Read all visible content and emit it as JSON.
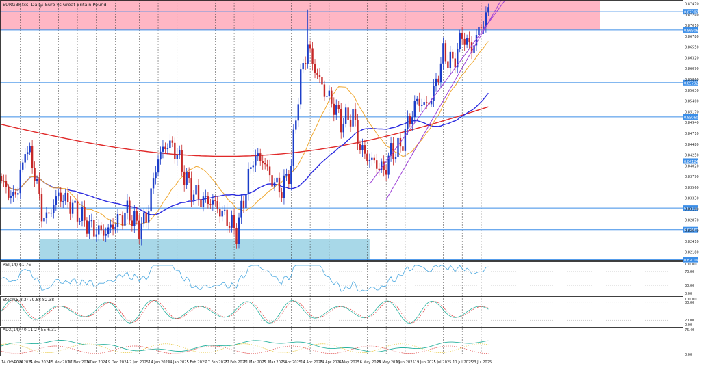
{
  "header": {
    "title": "EURGBP.fxs, Daily:  Euro vs Great Britain Pound"
  },
  "colors": {
    "bull": "#1a3cc8",
    "bear": "#c62828",
    "ma_fast": "#f0a830",
    "ma_mid": "#2a2ae0",
    "ma_slow": "#e02828",
    "channel": "#9b3fd6",
    "hline": "#3b8ee8",
    "resistance_zone": "#ffb6c4",
    "support_zone": "#a8d8e8",
    "indicator_line": "#4aa8e0",
    "stoch_signal": "#e04848",
    "adx_plus": "#2bb3a0",
    "adx_minus": "#e8c840",
    "label_bg": "#3b8ee8"
  },
  "chart_data": [
    {
      "id": "price",
      "type": "candlestick",
      "title": "EURGBP.fxs, Daily:  Euro vs Great Britain Pound",
      "ylim": [
        0.82,
        0.8755
      ],
      "y_ticks": [
        "0.87470",
        "0.87240",
        "0.87010",
        "0.86780",
        "0.86550",
        "0.86320",
        "0.86090",
        "0.85860",
        "0.85630",
        "0.85400",
        "0.85170",
        "0.84940",
        "0.84710",
        "0.84480",
        "0.84250",
        "0.84020",
        "0.83790",
        "0.83560",
        "0.83330",
        "0.83100",
        "0.82870",
        "0.82640",
        "0.82410",
        "0.82180"
      ],
      "x_labels": [
        "14 Oct 2024",
        "24 Oct 2024",
        "5 Nov 2024",
        "15 Nov 2024",
        "27 Nov 2024",
        "9 Dec 2024",
        "19 Dec 2024",
        "2 Jan 2025",
        "14 Jan 2025",
        "24 Jan 2025",
        "5 Feb 2025",
        "17 Feb 2025",
        "27 Feb 2025",
        "11 Mar 2025",
        "21 Mar 2025",
        "2 Apr 2025",
        "14 Apr 2025",
        "24 Apr 2025",
        "6 May 2025",
        "16 May 2025",
        "28 May 2025",
        "9 Jun 2025",
        "19 Jun 2025",
        "1 Jul 2025",
        "11 Jul 2025",
        "23 Jul 2025"
      ],
      "horizontal_levels": [
        {
          "value": 0.873,
          "label": "0.87302"
        },
        {
          "value": 0.8691,
          "label": "0.86906"
        },
        {
          "value": 0.8579,
          "label": "0.85792"
        },
        {
          "value": 0.8506,
          "label": "0.85060"
        },
        {
          "value": 0.8412,
          "label": "0.84124"
        },
        {
          "value": 0.8312,
          "label": "0.83123"
        },
        {
          "value": 0.8266,
          "label": "0.82661"
        },
        {
          "value": 0.8202,
          "label": "0.82019"
        }
      ],
      "resistance_zone": [
        0.8691,
        0.8755
      ],
      "support_zone": {
        "start": "5 Nov 2024",
        "end": "18 May 2025",
        "low": 0.8202,
        "high": 0.8246
      },
      "channel": {
        "lower": {
          "from": {
            "date": "19 May 2025",
            "value": 0.8363
          },
          "to": {
            "date": "28 Jul 2025",
            "value": 0.8727
          }
        },
        "upper": {
          "from": {
            "date": "28 May 2025",
            "value": 0.833
          },
          "to": {
            "date": "28 Jul 2025",
            "value": 0.875
          }
        }
      },
      "ohlc": [],
      "last_close": 0.8728
    },
    {
      "id": "rsi",
      "type": "line",
      "label": "RSI(14) 61.76",
      "ylim": [
        0,
        100
      ],
      "y_ticks": [
        "100.00",
        "70.00",
        "30.00",
        "0.00"
      ],
      "levels": [
        70,
        30
      ]
    },
    {
      "id": "stoch",
      "type": "line",
      "label": "Stoch(5,3,3) 79.88 82.38",
      "ylim": [
        0,
        100
      ],
      "y_ticks": [
        "100.00",
        "80.00",
        "20.00",
        "0.00"
      ],
      "levels": [
        80,
        20
      ]
    },
    {
      "id": "adx",
      "type": "line",
      "label": "ADX(14) 40.11 27.55 6.31",
      "y_ticks": [
        "75.40",
        "0.00"
      ]
    }
  ]
}
